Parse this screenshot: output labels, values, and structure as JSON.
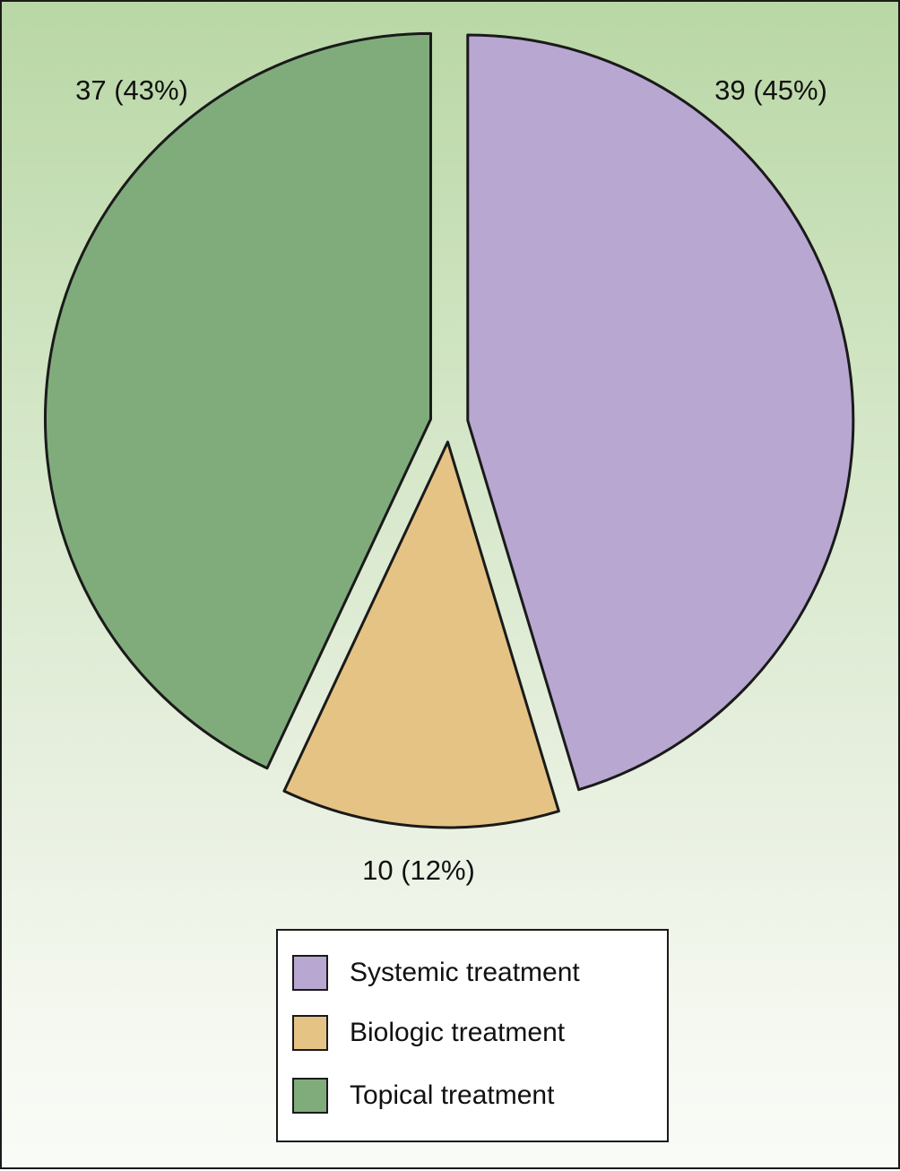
{
  "chart_data": {
    "type": "pie",
    "title": "",
    "slices": [
      {
        "name": "Systemic treatment",
        "value": 39,
        "percent": 45,
        "label": "39 (45%)",
        "color": "#b8a7d1"
      },
      {
        "name": "Biologic treatment",
        "value": 10,
        "percent": 12,
        "label": "10 (12%)",
        "color": "#e5c384"
      },
      {
        "name": "Topical treatment",
        "value": 37,
        "percent": 43,
        "label": "37 (43%)",
        "color": "#80ac7c"
      }
    ],
    "exploded": true,
    "start_angle": "12 o'clock, clockwise",
    "legend_position": "bottom-center",
    "legend": [
      {
        "label": "Systemic treatment",
        "color": "#b8a7d1"
      },
      {
        "label": "Biologic treatment",
        "color": "#e5c384"
      },
      {
        "label": "Topical treatment",
        "color": "#80ac7c"
      }
    ]
  },
  "style": {
    "background_top": "#b9d7a5",
    "background_bottom": "#f9fbf6",
    "outline": "#1a1a1a"
  }
}
